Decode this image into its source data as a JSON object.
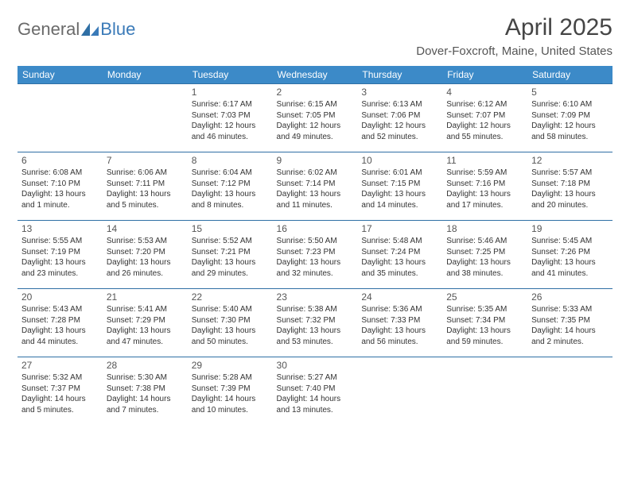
{
  "brand": {
    "general": "General",
    "blue": "Blue",
    "accent": "#3a7ab8",
    "grey": "#6a6a6a"
  },
  "title": "April 2025",
  "location": "Dover-Foxcroft, Maine, United States",
  "colors": {
    "header_bg": "#3c8ac8",
    "header_text": "#ffffff",
    "row_border": "#2f6fa5",
    "body_text": "#333333",
    "page_bg": "#ffffff"
  },
  "daysOfWeek": [
    "Sunday",
    "Monday",
    "Tuesday",
    "Wednesday",
    "Thursday",
    "Friday",
    "Saturday"
  ],
  "weeks": [
    [
      null,
      null,
      {
        "n": "1",
        "sr": "Sunrise: 6:17 AM",
        "ss": "Sunset: 7:03 PM",
        "d1": "Daylight: 12 hours",
        "d2": "and 46 minutes."
      },
      {
        "n": "2",
        "sr": "Sunrise: 6:15 AM",
        "ss": "Sunset: 7:05 PM",
        "d1": "Daylight: 12 hours",
        "d2": "and 49 minutes."
      },
      {
        "n": "3",
        "sr": "Sunrise: 6:13 AM",
        "ss": "Sunset: 7:06 PM",
        "d1": "Daylight: 12 hours",
        "d2": "and 52 minutes."
      },
      {
        "n": "4",
        "sr": "Sunrise: 6:12 AM",
        "ss": "Sunset: 7:07 PM",
        "d1": "Daylight: 12 hours",
        "d2": "and 55 minutes."
      },
      {
        "n": "5",
        "sr": "Sunrise: 6:10 AM",
        "ss": "Sunset: 7:09 PM",
        "d1": "Daylight: 12 hours",
        "d2": "and 58 minutes."
      }
    ],
    [
      {
        "n": "6",
        "sr": "Sunrise: 6:08 AM",
        "ss": "Sunset: 7:10 PM",
        "d1": "Daylight: 13 hours",
        "d2": "and 1 minute."
      },
      {
        "n": "7",
        "sr": "Sunrise: 6:06 AM",
        "ss": "Sunset: 7:11 PM",
        "d1": "Daylight: 13 hours",
        "d2": "and 5 minutes."
      },
      {
        "n": "8",
        "sr": "Sunrise: 6:04 AM",
        "ss": "Sunset: 7:12 PM",
        "d1": "Daylight: 13 hours",
        "d2": "and 8 minutes."
      },
      {
        "n": "9",
        "sr": "Sunrise: 6:02 AM",
        "ss": "Sunset: 7:14 PM",
        "d1": "Daylight: 13 hours",
        "d2": "and 11 minutes."
      },
      {
        "n": "10",
        "sr": "Sunrise: 6:01 AM",
        "ss": "Sunset: 7:15 PM",
        "d1": "Daylight: 13 hours",
        "d2": "and 14 minutes."
      },
      {
        "n": "11",
        "sr": "Sunrise: 5:59 AM",
        "ss": "Sunset: 7:16 PM",
        "d1": "Daylight: 13 hours",
        "d2": "and 17 minutes."
      },
      {
        "n": "12",
        "sr": "Sunrise: 5:57 AM",
        "ss": "Sunset: 7:18 PM",
        "d1": "Daylight: 13 hours",
        "d2": "and 20 minutes."
      }
    ],
    [
      {
        "n": "13",
        "sr": "Sunrise: 5:55 AM",
        "ss": "Sunset: 7:19 PM",
        "d1": "Daylight: 13 hours",
        "d2": "and 23 minutes."
      },
      {
        "n": "14",
        "sr": "Sunrise: 5:53 AM",
        "ss": "Sunset: 7:20 PM",
        "d1": "Daylight: 13 hours",
        "d2": "and 26 minutes."
      },
      {
        "n": "15",
        "sr": "Sunrise: 5:52 AM",
        "ss": "Sunset: 7:21 PM",
        "d1": "Daylight: 13 hours",
        "d2": "and 29 minutes."
      },
      {
        "n": "16",
        "sr": "Sunrise: 5:50 AM",
        "ss": "Sunset: 7:23 PM",
        "d1": "Daylight: 13 hours",
        "d2": "and 32 minutes."
      },
      {
        "n": "17",
        "sr": "Sunrise: 5:48 AM",
        "ss": "Sunset: 7:24 PM",
        "d1": "Daylight: 13 hours",
        "d2": "and 35 minutes."
      },
      {
        "n": "18",
        "sr": "Sunrise: 5:46 AM",
        "ss": "Sunset: 7:25 PM",
        "d1": "Daylight: 13 hours",
        "d2": "and 38 minutes."
      },
      {
        "n": "19",
        "sr": "Sunrise: 5:45 AM",
        "ss": "Sunset: 7:26 PM",
        "d1": "Daylight: 13 hours",
        "d2": "and 41 minutes."
      }
    ],
    [
      {
        "n": "20",
        "sr": "Sunrise: 5:43 AM",
        "ss": "Sunset: 7:28 PM",
        "d1": "Daylight: 13 hours",
        "d2": "and 44 minutes."
      },
      {
        "n": "21",
        "sr": "Sunrise: 5:41 AM",
        "ss": "Sunset: 7:29 PM",
        "d1": "Daylight: 13 hours",
        "d2": "and 47 minutes."
      },
      {
        "n": "22",
        "sr": "Sunrise: 5:40 AM",
        "ss": "Sunset: 7:30 PM",
        "d1": "Daylight: 13 hours",
        "d2": "and 50 minutes."
      },
      {
        "n": "23",
        "sr": "Sunrise: 5:38 AM",
        "ss": "Sunset: 7:32 PM",
        "d1": "Daylight: 13 hours",
        "d2": "and 53 minutes."
      },
      {
        "n": "24",
        "sr": "Sunrise: 5:36 AM",
        "ss": "Sunset: 7:33 PM",
        "d1": "Daylight: 13 hours",
        "d2": "and 56 minutes."
      },
      {
        "n": "25",
        "sr": "Sunrise: 5:35 AM",
        "ss": "Sunset: 7:34 PM",
        "d1": "Daylight: 13 hours",
        "d2": "and 59 minutes."
      },
      {
        "n": "26",
        "sr": "Sunrise: 5:33 AM",
        "ss": "Sunset: 7:35 PM",
        "d1": "Daylight: 14 hours",
        "d2": "and 2 minutes."
      }
    ],
    [
      {
        "n": "27",
        "sr": "Sunrise: 5:32 AM",
        "ss": "Sunset: 7:37 PM",
        "d1": "Daylight: 14 hours",
        "d2": "and 5 minutes."
      },
      {
        "n": "28",
        "sr": "Sunrise: 5:30 AM",
        "ss": "Sunset: 7:38 PM",
        "d1": "Daylight: 14 hours",
        "d2": "and 7 minutes."
      },
      {
        "n": "29",
        "sr": "Sunrise: 5:28 AM",
        "ss": "Sunset: 7:39 PM",
        "d1": "Daylight: 14 hours",
        "d2": "and 10 minutes."
      },
      {
        "n": "30",
        "sr": "Sunrise: 5:27 AM",
        "ss": "Sunset: 7:40 PM",
        "d1": "Daylight: 14 hours",
        "d2": "and 13 minutes."
      },
      null,
      null,
      null
    ]
  ]
}
